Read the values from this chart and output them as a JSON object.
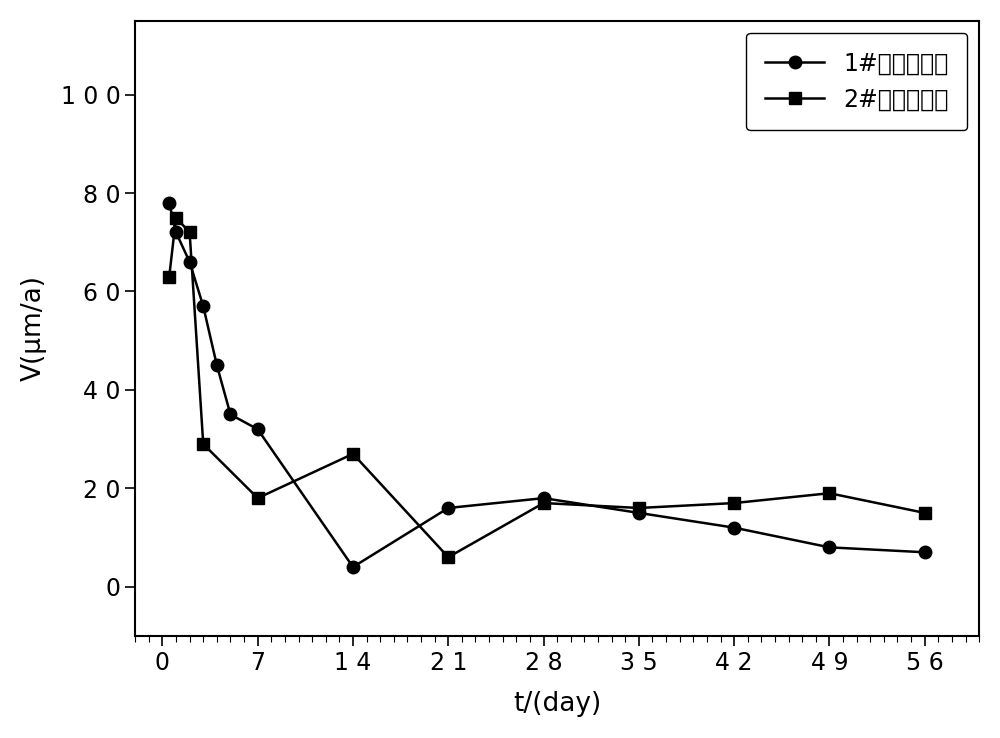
{
  "series1_label": "1#（去表皮）",
  "series2_label": "2#（去表皮）",
  "series1_x": [
    0.5,
    1,
    2,
    3,
    4,
    5,
    7,
    14,
    21,
    28,
    35,
    42,
    49,
    56
  ],
  "series1_y": [
    78,
    72,
    66,
    57,
    45,
    35,
    32,
    4,
    16,
    18,
    15,
    12,
    8,
    7
  ],
  "series2_x": [
    0.5,
    1,
    2,
    3,
    7,
    14,
    21,
    28,
    35,
    42,
    49,
    56
  ],
  "series2_y": [
    63,
    75,
    72,
    29,
    18,
    27,
    6,
    17,
    16,
    17,
    19,
    15
  ],
  "xlabel": "t/(day)",
  "ylabel": "V(μm/a)",
  "xlim": [
    -2,
    60
  ],
  "ylim": [
    -10,
    115
  ],
  "xticks": [
    0,
    7,
    14,
    21,
    28,
    35,
    42,
    49,
    56
  ],
  "yticks": [
    0,
    20,
    40,
    60,
    80,
    100
  ],
  "line_color": "#000000",
  "marker1": "o",
  "marker2": "s",
  "markersize": 9,
  "linewidth": 1.8,
  "legend_loc": "upper right",
  "background_color": "#ffffff"
}
